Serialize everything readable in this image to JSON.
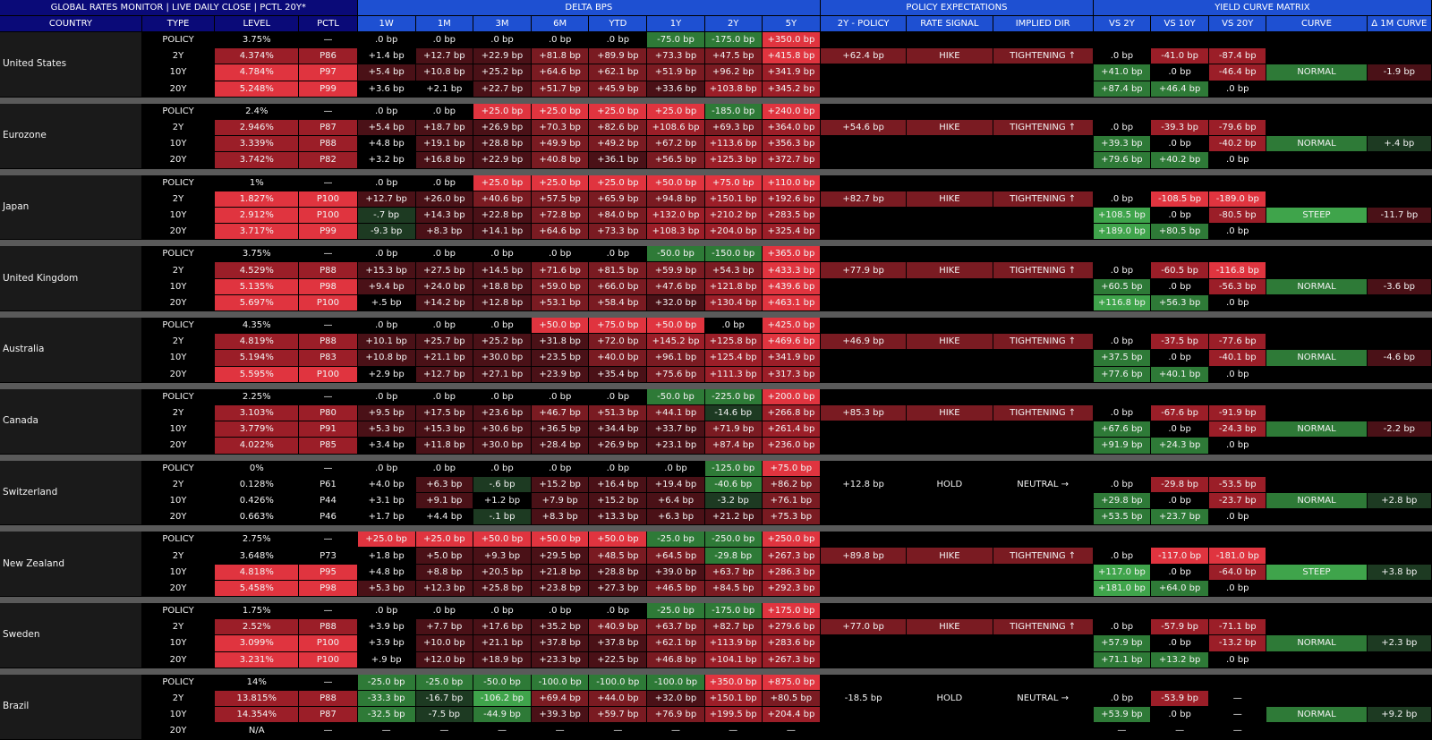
{
  "header": {
    "title": "GLOBAL RATES MONITOR | LIVE DAILY CLOSE | PCTL 20Y*",
    "groups": {
      "delta": "DELTA BPS",
      "policy": "POLICY EXPECTATIONS",
      "curve": "YIELD CURVE MATRIX"
    },
    "columns": [
      "COUNTRY",
      "TYPE",
      "LEVEL",
      "PCTL",
      "1W",
      "1M",
      "3M",
      "6M",
      "YTD",
      "1Y",
      "2Y",
      "5Y",
      "2Y - POLICY",
      "RATE SIGNAL",
      "IMPLIED DIR",
      "VS 2Y",
      "VS 10Y",
      "VS 20Y",
      "CURVE",
      "Δ 1M CURVE"
    ]
  },
  "types": [
    "POLICY",
    "2Y",
    "10Y",
    "20Y"
  ],
  "countries": [
    {
      "name": "United States",
      "rows": [
        [
          "POLICY",
          "3.75%",
          "—",
          ".0 bp",
          ".0 bp",
          ".0 bp",
          ".0 bp",
          ".0 bp",
          "-75.0 bp",
          "-175.0 bp",
          "+350.0 bp",
          "",
          "",
          "",
          "",
          "",
          "",
          "",
          ""
        ],
        [
          "2Y",
          "4.374%",
          "P86",
          "+1.4 bp",
          "+12.7 bp",
          "+22.9 bp",
          "+81.8 bp",
          "+89.9 bp",
          "+73.3 bp",
          "+47.5 bp",
          "+415.8 bp",
          "+62.4 bp",
          "HIKE",
          "TIGHTENING ↑",
          ".0 bp",
          "-41.0 bp",
          "-87.4 bp",
          "",
          ""
        ],
        [
          "10Y",
          "4.784%",
          "P97",
          "+5.4 bp",
          "+10.8 bp",
          "+25.2 bp",
          "+64.6 bp",
          "+62.1 bp",
          "+51.9 bp",
          "+96.2 bp",
          "+341.9 bp",
          "",
          "",
          "",
          "+41.0 bp",
          ".0 bp",
          "-46.4 bp",
          "NORMAL",
          "-1.9 bp"
        ],
        [
          "20Y",
          "5.248%",
          "P99",
          "+3.6 bp",
          "+2.1 bp",
          "+22.7 bp",
          "+51.7 bp",
          "+45.9 bp",
          "+33.6 bp",
          "+103.8 bp",
          "+345.2 bp",
          "",
          "",
          "",
          "+87.4 bp",
          "+46.4 bp",
          ".0 bp",
          "",
          ""
        ]
      ]
    },
    {
      "name": "Eurozone",
      "rows": [
        [
          "POLICY",
          "2.4%",
          "—",
          ".0 bp",
          ".0 bp",
          "+25.0 bp",
          "+25.0 bp",
          "+25.0 bp",
          "+25.0 bp",
          "-185.0 bp",
          "+240.0 bp",
          "",
          "",
          "",
          "",
          "",
          "",
          "",
          ""
        ],
        [
          "2Y",
          "2.946%",
          "P87",
          "+5.4 bp",
          "+18.7 bp",
          "+26.9 bp",
          "+70.3 bp",
          "+82.6 bp",
          "+108.6 bp",
          "+69.3 bp",
          "+364.0 bp",
          "+54.6 bp",
          "HIKE",
          "TIGHTENING ↑",
          ".0 bp",
          "-39.3 bp",
          "-79.6 bp",
          "",
          ""
        ],
        [
          "10Y",
          "3.339%",
          "P88",
          "+4.8 bp",
          "+19.1 bp",
          "+28.8 bp",
          "+49.9 bp",
          "+49.2 bp",
          "+67.2 bp",
          "+113.6 bp",
          "+356.3 bp",
          "",
          "",
          "",
          "+39.3 bp",
          ".0 bp",
          "-40.2 bp",
          "NORMAL",
          "+.4 bp"
        ],
        [
          "20Y",
          "3.742%",
          "P82",
          "+3.2 bp",
          "+16.8 bp",
          "+22.9 bp",
          "+40.8 bp",
          "+36.1 bp",
          "+56.5 bp",
          "+125.3 bp",
          "+372.7 bp",
          "",
          "",
          "",
          "+79.6 bp",
          "+40.2 bp",
          ".0 bp",
          "",
          ""
        ]
      ]
    },
    {
      "name": "Japan",
      "rows": [
        [
          "POLICY",
          "1%",
          "—",
          ".0 bp",
          ".0 bp",
          "+25.0 bp",
          "+25.0 bp",
          "+25.0 bp",
          "+50.0 bp",
          "+75.0 bp",
          "+110.0 bp",
          "",
          "",
          "",
          "",
          "",
          "",
          "",
          ""
        ],
        [
          "2Y",
          "1.827%",
          "P100",
          "+12.7 bp",
          "+26.0 bp",
          "+40.6 bp",
          "+57.5 bp",
          "+65.9 bp",
          "+94.8 bp",
          "+150.1 bp",
          "+192.6 bp",
          "+82.7 bp",
          "HIKE",
          "TIGHTENING ↑",
          ".0 bp",
          "-108.5 bp",
          "-189.0 bp",
          "",
          ""
        ],
        [
          "10Y",
          "2.912%",
          "P100",
          "-.7 bp",
          "+14.3 bp",
          "+22.8 bp",
          "+72.8 bp",
          "+84.0 bp",
          "+132.0 bp",
          "+210.2 bp",
          "+283.5 bp",
          "",
          "",
          "",
          "+108.5 bp",
          ".0 bp",
          "-80.5 bp",
          "STEEP",
          "-11.7 bp"
        ],
        [
          "20Y",
          "3.717%",
          "P99",
          "-9.3 bp",
          "+8.3 bp",
          "+14.1 bp",
          "+64.6 bp",
          "+73.3 bp",
          "+108.3 bp",
          "+204.0 bp",
          "+325.4 bp",
          "",
          "",
          "",
          "+189.0 bp",
          "+80.5 bp",
          ".0 bp",
          "",
          ""
        ]
      ]
    },
    {
      "name": "United Kingdom",
      "rows": [
        [
          "POLICY",
          "3.75%",
          "—",
          ".0 bp",
          ".0 bp",
          ".0 bp",
          ".0 bp",
          ".0 bp",
          "-50.0 bp",
          "-150.0 bp",
          "+365.0 bp",
          "",
          "",
          "",
          "",
          "",
          "",
          "",
          ""
        ],
        [
          "2Y",
          "4.529%",
          "P88",
          "+15.3 bp",
          "+27.5 bp",
          "+14.5 bp",
          "+71.6 bp",
          "+81.5 bp",
          "+59.9 bp",
          "+54.3 bp",
          "+433.3 bp",
          "+77.9 bp",
          "HIKE",
          "TIGHTENING ↑",
          ".0 bp",
          "-60.5 bp",
          "-116.8 bp",
          "",
          ""
        ],
        [
          "10Y",
          "5.135%",
          "P98",
          "+9.4 bp",
          "+24.0 bp",
          "+18.8 bp",
          "+59.0 bp",
          "+66.0 bp",
          "+47.6 bp",
          "+121.8 bp",
          "+439.6 bp",
          "",
          "",
          "",
          "+60.5 bp",
          ".0 bp",
          "-56.3 bp",
          "NORMAL",
          "-3.6 bp"
        ],
        [
          "20Y",
          "5.697%",
          "P100",
          "+.5 bp",
          "+14.2 bp",
          "+12.8 bp",
          "+53.1 bp",
          "+58.4 bp",
          "+32.0 bp",
          "+130.4 bp",
          "+463.1 bp",
          "",
          "",
          "",
          "+116.8 bp",
          "+56.3 bp",
          ".0 bp",
          "",
          ""
        ]
      ]
    },
    {
      "name": "Australia",
      "rows": [
        [
          "POLICY",
          "4.35%",
          "—",
          ".0 bp",
          ".0 bp",
          ".0 bp",
          "+50.0 bp",
          "+75.0 bp",
          "+50.0 bp",
          ".0 bp",
          "+425.0 bp",
          "",
          "",
          "",
          "",
          "",
          "",
          "",
          ""
        ],
        [
          "2Y",
          "4.819%",
          "P88",
          "+10.1 bp",
          "+25.7 bp",
          "+25.2 bp",
          "+31.8 bp",
          "+72.0 bp",
          "+145.2 bp",
          "+125.8 bp",
          "+469.6 bp",
          "+46.9 bp",
          "HIKE",
          "TIGHTENING ↑",
          ".0 bp",
          "-37.5 bp",
          "-77.6 bp",
          "",
          ""
        ],
        [
          "10Y",
          "5.194%",
          "P83",
          "+10.8 bp",
          "+21.1 bp",
          "+30.0 bp",
          "+23.5 bp",
          "+40.0 bp",
          "+96.1 bp",
          "+125.4 bp",
          "+341.9 bp",
          "",
          "",
          "",
          "+37.5 bp",
          ".0 bp",
          "-40.1 bp",
          "NORMAL",
          "-4.6 bp"
        ],
        [
          "20Y",
          "5.595%",
          "P100",
          "+2.9 bp",
          "+12.7 bp",
          "+27.1 bp",
          "+23.9 bp",
          "+35.4 bp",
          "+75.6 bp",
          "+111.3 bp",
          "+317.3 bp",
          "",
          "",
          "",
          "+77.6 bp",
          "+40.1 bp",
          ".0 bp",
          "",
          ""
        ]
      ]
    },
    {
      "name": "Canada",
      "rows": [
        [
          "POLICY",
          "2.25%",
          "—",
          ".0 bp",
          ".0 bp",
          ".0 bp",
          ".0 bp",
          ".0 bp",
          "-50.0 bp",
          "-225.0 bp",
          "+200.0 bp",
          "",
          "",
          "",
          "",
          "",
          "",
          "",
          ""
        ],
        [
          "2Y",
          "3.103%",
          "P80",
          "+9.5 bp",
          "+17.5 bp",
          "+23.6 bp",
          "+46.7 bp",
          "+51.3 bp",
          "+44.1 bp",
          "-14.6 bp",
          "+266.8 bp",
          "+85.3 bp",
          "HIKE",
          "TIGHTENING ↑",
          ".0 bp",
          "-67.6 bp",
          "-91.9 bp",
          "",
          ""
        ],
        [
          "10Y",
          "3.779%",
          "P91",
          "+5.3 bp",
          "+15.3 bp",
          "+30.6 bp",
          "+36.5 bp",
          "+34.4 bp",
          "+33.7 bp",
          "+71.9 bp",
          "+261.4 bp",
          "",
          "",
          "",
          "+67.6 bp",
          ".0 bp",
          "-24.3 bp",
          "NORMAL",
          "-2.2 bp"
        ],
        [
          "20Y",
          "4.022%",
          "P85",
          "+3.4 bp",
          "+11.8 bp",
          "+30.0 bp",
          "+28.4 bp",
          "+26.9 bp",
          "+23.1 bp",
          "+87.4 bp",
          "+236.0 bp",
          "",
          "",
          "",
          "+91.9 bp",
          "+24.3 bp",
          ".0 bp",
          "",
          ""
        ]
      ]
    },
    {
      "name": "Switzerland",
      "rows": [
        [
          "POLICY",
          "0%",
          "—",
          ".0 bp",
          ".0 bp",
          ".0 bp",
          ".0 bp",
          ".0 bp",
          ".0 bp",
          "-125.0 bp",
          "+75.0 bp",
          "",
          "",
          "",
          "",
          "",
          "",
          "",
          ""
        ],
        [
          "2Y",
          "0.128%",
          "P61",
          "+4.0 bp",
          "+6.3 bp",
          "-.6 bp",
          "+15.2 bp",
          "+16.4 bp",
          "+19.4 bp",
          "-40.6 bp",
          "+86.2 bp",
          "+12.8 bp",
          "HOLD",
          "NEUTRAL →",
          ".0 bp",
          "-29.8 bp",
          "-53.5 bp",
          "",
          ""
        ],
        [
          "10Y",
          "0.426%",
          "P44",
          "+3.1 bp",
          "+9.1 bp",
          "+1.2 bp",
          "+7.9 bp",
          "+15.2 bp",
          "+6.4 bp",
          "-3.2 bp",
          "+76.1 bp",
          "",
          "",
          "",
          "+29.8 bp",
          ".0 bp",
          "-23.7 bp",
          "NORMAL",
          "+2.8 bp"
        ],
        [
          "20Y",
          "0.663%",
          "P46",
          "+1.7 bp",
          "+4.4 bp",
          "-.1 bp",
          "+8.3 bp",
          "+13.3 bp",
          "+6.3 bp",
          "+21.2 bp",
          "+75.3 bp",
          "",
          "",
          "",
          "+53.5 bp",
          "+23.7 bp",
          ".0 bp",
          "",
          ""
        ]
      ]
    },
    {
      "name": "New Zealand",
      "rows": [
        [
          "POLICY",
          "2.75%",
          "—",
          "+25.0 bp",
          "+25.0 bp",
          "+50.0 bp",
          "+50.0 bp",
          "+50.0 bp",
          "-25.0 bp",
          "-250.0 bp",
          "+250.0 bp",
          "",
          "",
          "",
          "",
          "",
          "",
          "",
          ""
        ],
        [
          "2Y",
          "3.648%",
          "P73",
          "+1.8 bp",
          "+5.0 bp",
          "+9.3 bp",
          "+29.5 bp",
          "+48.5 bp",
          "+64.5 bp",
          "-29.8 bp",
          "+267.3 bp",
          "+89.8 bp",
          "HIKE",
          "TIGHTENING ↑",
          ".0 bp",
          "-117.0 bp",
          "-181.0 bp",
          "",
          ""
        ],
        [
          "10Y",
          "4.818%",
          "P95",
          "+4.8 bp",
          "+8.8 bp",
          "+20.5 bp",
          "+21.8 bp",
          "+28.8 bp",
          "+39.0 bp",
          "+63.7 bp",
          "+286.3 bp",
          "",
          "",
          "",
          "+117.0 bp",
          ".0 bp",
          "-64.0 bp",
          "STEEP",
          "+3.8 bp"
        ],
        [
          "20Y",
          "5.458%",
          "P98",
          "+5.3 bp",
          "+12.3 bp",
          "+25.8 bp",
          "+23.8 bp",
          "+27.3 bp",
          "+46.5 bp",
          "+84.5 bp",
          "+292.3 bp",
          "",
          "",
          "",
          "+181.0 bp",
          "+64.0 bp",
          ".0 bp",
          "",
          ""
        ]
      ]
    },
    {
      "name": "Sweden",
      "rows": [
        [
          "POLICY",
          "1.75%",
          "—",
          ".0 bp",
          ".0 bp",
          ".0 bp",
          ".0 bp",
          ".0 bp",
          "-25.0 bp",
          "-175.0 bp",
          "+175.0 bp",
          "",
          "",
          "",
          "",
          "",
          "",
          "",
          ""
        ],
        [
          "2Y",
          "2.52%",
          "P88",
          "+3.9 bp",
          "+7.7 bp",
          "+17.6 bp",
          "+35.2 bp",
          "+40.9 bp",
          "+63.7 bp",
          "+82.7 bp",
          "+279.6 bp",
          "+77.0 bp",
          "HIKE",
          "TIGHTENING ↑",
          ".0 bp",
          "-57.9 bp",
          "-71.1 bp",
          "",
          ""
        ],
        [
          "10Y",
          "3.099%",
          "P100",
          "+3.9 bp",
          "+10.0 bp",
          "+21.1 bp",
          "+37.8 bp",
          "+37.8 bp",
          "+62.1 bp",
          "+113.9 bp",
          "+283.6 bp",
          "",
          "",
          "",
          "+57.9 bp",
          ".0 bp",
          "-13.2 bp",
          "NORMAL",
          "+2.3 bp"
        ],
        [
          "20Y",
          "3.231%",
          "P100",
          "+.9 bp",
          "+12.0 bp",
          "+18.9 bp",
          "+23.3 bp",
          "+22.5 bp",
          "+46.8 bp",
          "+104.1 bp",
          "+267.3 bp",
          "",
          "",
          "",
          "+71.1 bp",
          "+13.2 bp",
          ".0 bp",
          "",
          ""
        ]
      ]
    },
    {
      "name": "Brazil",
      "rows": [
        [
          "POLICY",
          "14%",
          "—",
          "-25.0 bp",
          "-25.0 bp",
          "-50.0 bp",
          "-100.0 bp",
          "-100.0 bp",
          "-100.0 bp",
          "+350.0 bp",
          "+875.0 bp",
          "",
          "",
          "",
          "",
          "",
          "",
          "",
          ""
        ],
        [
          "2Y",
          "13.815%",
          "P88",
          "-33.3 bp",
          "-16.7 bp",
          "-106.2 bp",
          "+69.4 bp",
          "+44.0 bp",
          "+32.0 bp",
          "+150.1 bp",
          "+80.5 bp",
          "-18.5 bp",
          "HOLD",
          "NEUTRAL →",
          ".0 bp",
          "-53.9 bp",
          "—",
          "",
          ""
        ],
        [
          "10Y",
          "14.354%",
          "P87",
          "-32.5 bp",
          "-7.5 bp",
          "-44.9 bp",
          "+39.3 bp",
          "+59.7 bp",
          "+76.9 bp",
          "+199.5 bp",
          "+204.4 bp",
          "",
          "",
          "",
          "+53.9 bp",
          ".0 bp",
          "—",
          "NORMAL",
          "+9.2 bp"
        ],
        [
          "20Y",
          "N/A",
          "—",
          "—",
          "—",
          "—",
          "—",
          "—",
          "—",
          "—",
          "—",
          "",
          "",
          "",
          "—",
          "—",
          "—",
          "",
          ""
        ]
      ]
    }
  ],
  "colors": {
    "title_bg": "#0a0a78",
    "group_bg": "#1e50d2",
    "separator": "#5a5a5a",
    "bright_red": "#e0343f",
    "red": "#9b1e28",
    "dark_red": "#4a1117",
    "bright_green": "#3fa44b",
    "green": "#2e7a37",
    "dark_green": "#1d3a22"
  }
}
